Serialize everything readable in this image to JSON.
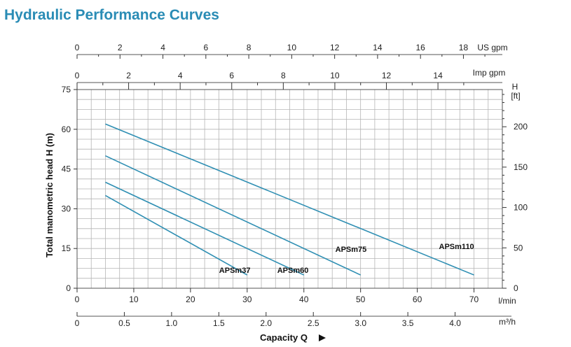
{
  "page_title": "Hydraulic Performance Curves",
  "chart_data": {
    "type": "line",
    "title": "Hydraulic Performance Curves",
    "ylabel": "Total manometric head H (m)",
    "xlabel": "Capacity Q",
    "x_unit": "l/min",
    "ylim": [
      0,
      75
    ],
    "xlim": [
      0,
      75
    ],
    "y_ticks": [
      "0",
      "15",
      "30",
      "45",
      "60",
      "75"
    ],
    "x_ticks": [
      "0",
      "10",
      "20",
      "30",
      "40",
      "50",
      "60",
      "70"
    ],
    "secondary_axes": {
      "ft": {
        "unit": "H\n[ft]",
        "unit_line1": "H",
        "unit_line2": "[ft]",
        "ticks": [
          {
            "v": 0,
            "label": "0"
          },
          {
            "v": 50,
            "label": "50"
          },
          {
            "v": 100,
            "label": "100"
          },
          {
            "v": 150,
            "label": "150"
          },
          {
            "v": 200,
            "label": "200"
          }
        ]
      },
      "us_gpm": {
        "unit": "US gpm",
        "ticks": [
          {
            "v": 0,
            "label": "0"
          },
          {
            "v": 2,
            "label": "2"
          },
          {
            "v": 4,
            "label": "4"
          },
          {
            "v": 6,
            "label": "6"
          },
          {
            "v": 8,
            "label": "8"
          },
          {
            "v": 10,
            "label": "10"
          },
          {
            "v": 12,
            "label": "12"
          },
          {
            "v": 14,
            "label": "14"
          },
          {
            "v": 16,
            "label": "16"
          },
          {
            "v": 18,
            "label": "18"
          }
        ]
      },
      "imp_gpm": {
        "unit": "Imp gpm",
        "ticks": [
          {
            "v": 0,
            "label": "0"
          },
          {
            "v": 2,
            "label": "2"
          },
          {
            "v": 4,
            "label": "4"
          },
          {
            "v": 6,
            "label": "6"
          },
          {
            "v": 8,
            "label": "8"
          },
          {
            "v": 10,
            "label": "10"
          },
          {
            "v": 12,
            "label": "12"
          },
          {
            "v": 14,
            "label": "14"
          }
        ]
      },
      "m3h": {
        "unit": "m³/h",
        "ticks": [
          {
            "v": 0,
            "label": "0"
          },
          {
            "v": 0.5,
            "label": "0.5"
          },
          {
            "v": 1.0,
            "label": "1.0"
          },
          {
            "v": 1.5,
            "label": "1.5"
          },
          {
            "v": 2.0,
            "label": "2.0"
          },
          {
            "v": 2.5,
            "label": "2.5"
          },
          {
            "v": 3.0,
            "label": "3.0"
          },
          {
            "v": 3.5,
            "label": "3.5"
          },
          {
            "v": 4.0,
            "label": "4.0"
          }
        ]
      }
    },
    "series": [
      {
        "name": "APSm37",
        "x": [
          5,
          30
        ],
        "y": [
          35,
          5
        ]
      },
      {
        "name": "APSm60",
        "x": [
          5,
          40
        ],
        "y": [
          40,
          5
        ]
      },
      {
        "name": "APSm75",
        "x": [
          5,
          50
        ],
        "y": [
          50,
          5
        ]
      },
      {
        "name": "APSm110",
        "x": [
          5,
          70
        ],
        "y": [
          62,
          5
        ]
      }
    ],
    "line_color": "#2f8fb3",
    "grid": true
  }
}
